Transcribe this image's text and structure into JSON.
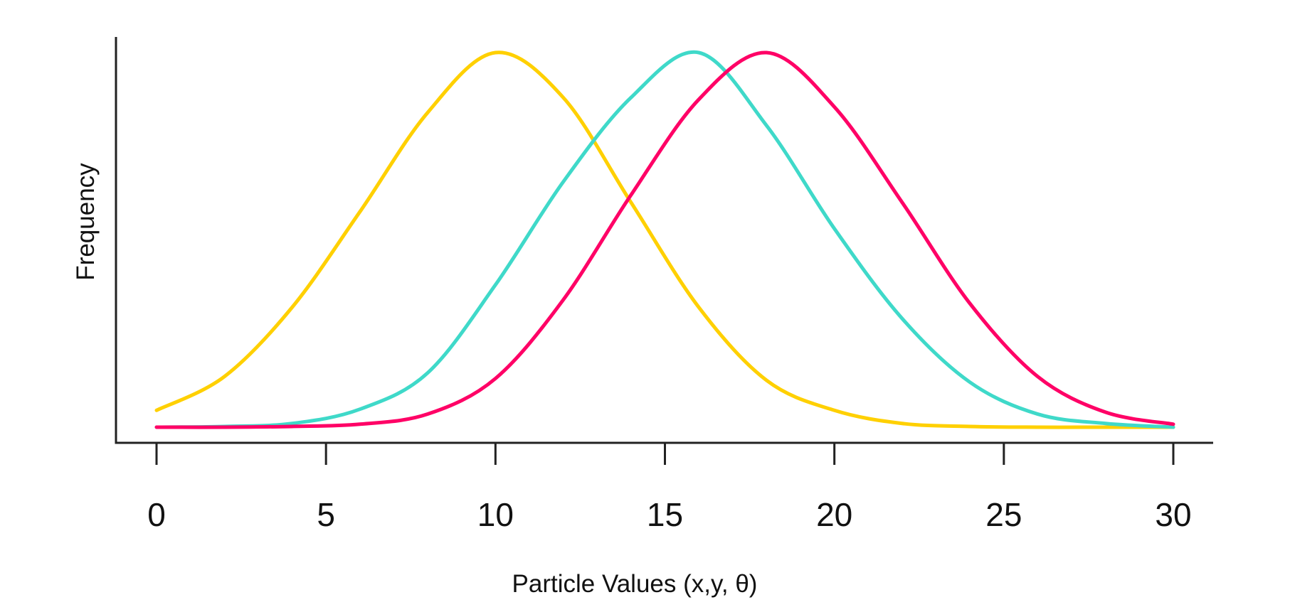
{
  "chart_data": {
    "type": "line",
    "title": "",
    "xlabel": "Particle Values (x,y, θ)",
    "ylabel": "Frequency",
    "xlim": [
      0,
      30
    ],
    "ylim": [
      0,
      1
    ],
    "x_ticks": [
      0,
      5,
      10,
      15,
      20,
      25,
      30
    ],
    "x_tick_labels": [
      "0",
      "5",
      "10",
      "15",
      "20",
      "25",
      "30"
    ],
    "grid": false,
    "legend": "none",
    "x": [
      0,
      2,
      4,
      6,
      8,
      10,
      12,
      14,
      16,
      18,
      20,
      22,
      24,
      26,
      28,
      30
    ],
    "series": [
      {
        "color": "#FFD000",
        "values": [
          0.045,
          0.135,
          0.32,
          0.575,
          0.84,
          1.0,
          0.88,
          0.6,
          0.32,
          0.125,
          0.045,
          0.01,
          0.002,
          0.0,
          0.0,
          0.0
        ]
      },
      {
        "color": "#3FD9C9",
        "values": [
          0.0,
          0.002,
          0.01,
          0.048,
          0.145,
          0.38,
          0.655,
          0.88,
          1.0,
          0.805,
          0.53,
          0.29,
          0.12,
          0.035,
          0.01,
          0.0
        ]
      },
      {
        "color": "#FF0066",
        "values": [
          0.0,
          0.0,
          0.002,
          0.008,
          0.035,
          0.13,
          0.34,
          0.62,
          0.875,
          1.0,
          0.855,
          0.6,
          0.33,
          0.135,
          0.04,
          0.008
        ]
      }
    ]
  }
}
